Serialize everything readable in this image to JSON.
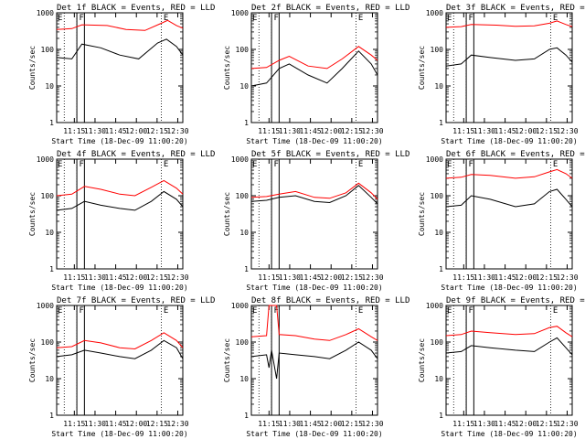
{
  "chart_data": {
    "type": "line",
    "layout": "3x3",
    "yscale": "log",
    "ylim": [
      1,
      1000
    ],
    "yticks": [
      "1",
      "10",
      "100",
      "1000"
    ],
    "xticks": [
      "11:15",
      "11:30",
      "11:45",
      "12:00",
      "12:15",
      "12:30"
    ],
    "ylabel": "Counts/sec",
    "xlabel": "Start Time (18-Dec-09 11:00:20)",
    "colors": {
      "events": "#000000",
      "lld": "#ff0000"
    },
    "panels": [
      {
        "title": "Det 1f BLACK = Events, RED = LLD",
        "marks": [
          "E",
          "F",
          "E"
        ],
        "events": [
          [
            0,
            60
          ],
          [
            0.12,
            55
          ],
          [
            0.2,
            140
          ],
          [
            0.35,
            110
          ],
          [
            0.5,
            70
          ],
          [
            0.65,
            55
          ],
          [
            0.8,
            150
          ],
          [
            0.87,
            190
          ],
          [
            0.95,
            120
          ],
          [
            1.0,
            70
          ]
        ],
        "lld": [
          [
            0,
            350
          ],
          [
            0.12,
            370
          ],
          [
            0.2,
            470
          ],
          [
            0.4,
            450
          ],
          [
            0.55,
            350
          ],
          [
            0.7,
            330
          ],
          [
            0.82,
            500
          ],
          [
            0.88,
            620
          ],
          [
            0.95,
            450
          ],
          [
            1.0,
            380
          ]
        ]
      },
      {
        "title": "Det 2f BLACK = Events, RED = LLD",
        "marks": [
          "E",
          "F",
          "E"
        ],
        "events": [
          [
            0,
            10
          ],
          [
            0.12,
            12
          ],
          [
            0.22,
            30
          ],
          [
            0.3,
            40
          ],
          [
            0.45,
            20
          ],
          [
            0.6,
            12
          ],
          [
            0.72,
            30
          ],
          [
            0.85,
            90
          ],
          [
            0.95,
            40
          ],
          [
            1.0,
            20
          ]
        ],
        "lld": [
          [
            0,
            30
          ],
          [
            0.12,
            32
          ],
          [
            0.22,
            50
          ],
          [
            0.3,
            65
          ],
          [
            0.45,
            35
          ],
          [
            0.6,
            30
          ],
          [
            0.72,
            55
          ],
          [
            0.85,
            120
          ],
          [
            0.95,
            70
          ],
          [
            1.0,
            50
          ]
        ]
      },
      {
        "title": "Det 3f BLACK = Events, RED = LLD",
        "marks": [
          "E",
          "F",
          "E"
        ],
        "events": [
          [
            0,
            35
          ],
          [
            0.12,
            40
          ],
          [
            0.2,
            70
          ],
          [
            0.35,
            60
          ],
          [
            0.55,
            50
          ],
          [
            0.7,
            55
          ],
          [
            0.82,
            100
          ],
          [
            0.88,
            110
          ],
          [
            0.95,
            70
          ],
          [
            1.0,
            45
          ]
        ],
        "lld": [
          [
            0,
            400
          ],
          [
            0.12,
            420
          ],
          [
            0.2,
            480
          ],
          [
            0.4,
            460
          ],
          [
            0.55,
            430
          ],
          [
            0.7,
            440
          ],
          [
            0.82,
            520
          ],
          [
            0.88,
            600
          ],
          [
            0.95,
            480
          ],
          [
            1.0,
            420
          ]
        ]
      },
      {
        "title": "Det 4f BLACK = Events, RED = LLD",
        "marks": [
          "E",
          "F",
          "E"
        ],
        "events": [
          [
            0,
            40
          ],
          [
            0.12,
            45
          ],
          [
            0.22,
            70
          ],
          [
            0.35,
            55
          ],
          [
            0.5,
            45
          ],
          [
            0.62,
            40
          ],
          [
            0.75,
            70
          ],
          [
            0.85,
            130
          ],
          [
            0.95,
            80
          ],
          [
            1.0,
            50
          ]
        ],
        "lld": [
          [
            0,
            100
          ],
          [
            0.12,
            110
          ],
          [
            0.22,
            180
          ],
          [
            0.35,
            150
          ],
          [
            0.5,
            110
          ],
          [
            0.62,
            100
          ],
          [
            0.75,
            170
          ],
          [
            0.85,
            260
          ],
          [
            0.95,
            160
          ],
          [
            1.0,
            110
          ]
        ]
      },
      {
        "title": "Det 5f BLACK = Events, RED = LLD",
        "marks": [
          "E",
          "F",
          "E"
        ],
        "events": [
          [
            0,
            70
          ],
          [
            0.12,
            75
          ],
          [
            0.22,
            90
          ],
          [
            0.35,
            100
          ],
          [
            0.5,
            70
          ],
          [
            0.62,
            65
          ],
          [
            0.75,
            100
          ],
          [
            0.85,
            190
          ],
          [
            0.95,
            90
          ],
          [
            1.0,
            60
          ]
        ],
        "lld": [
          [
            0,
            90
          ],
          [
            0.12,
            95
          ],
          [
            0.22,
            110
          ],
          [
            0.35,
            130
          ],
          [
            0.5,
            90
          ],
          [
            0.62,
            85
          ],
          [
            0.75,
            120
          ],
          [
            0.85,
            220
          ],
          [
            0.95,
            120
          ],
          [
            1.0,
            80
          ]
        ]
      },
      {
        "title": "Det 6f BLACK = Events, RED = LLD",
        "marks": [
          "E",
          "F",
          "E"
        ],
        "events": [
          [
            0,
            50
          ],
          [
            0.12,
            55
          ],
          [
            0.2,
            100
          ],
          [
            0.35,
            80
          ],
          [
            0.55,
            50
          ],
          [
            0.7,
            60
          ],
          [
            0.82,
            130
          ],
          [
            0.88,
            150
          ],
          [
            0.95,
            80
          ],
          [
            1.0,
            50
          ]
        ],
        "lld": [
          [
            0,
            300
          ],
          [
            0.12,
            320
          ],
          [
            0.2,
            380
          ],
          [
            0.35,
            360
          ],
          [
            0.55,
            300
          ],
          [
            0.7,
            330
          ],
          [
            0.82,
            450
          ],
          [
            0.88,
            520
          ],
          [
            0.95,
            400
          ],
          [
            1.0,
            300
          ]
        ]
      },
      {
        "title": "Det 7f BLACK = Events, RED = LLD",
        "marks": [
          "E",
          "F",
          "E"
        ],
        "events": [
          [
            0,
            40
          ],
          [
            0.12,
            45
          ],
          [
            0.22,
            60
          ],
          [
            0.35,
            50
          ],
          [
            0.5,
            40
          ],
          [
            0.62,
            35
          ],
          [
            0.75,
            60
          ],
          [
            0.85,
            110
          ],
          [
            0.95,
            70
          ],
          [
            1.0,
            35
          ]
        ],
        "lld": [
          [
            0,
            70
          ],
          [
            0.12,
            75
          ],
          [
            0.22,
            110
          ],
          [
            0.35,
            95
          ],
          [
            0.5,
            70
          ],
          [
            0.62,
            65
          ],
          [
            0.75,
            110
          ],
          [
            0.85,
            180
          ],
          [
            0.95,
            110
          ],
          [
            1.0,
            70
          ]
        ]
      },
      {
        "title": "Det 8f BLACK = Events, RED = LLD",
        "marks": [
          "E",
          "F",
          "E"
        ],
        "events": [
          [
            0,
            40
          ],
          [
            0.12,
            45
          ],
          [
            0.14,
            20
          ],
          [
            0.16,
            60
          ],
          [
            0.2,
            10
          ],
          [
            0.22,
            50
          ],
          [
            0.35,
            45
          ],
          [
            0.5,
            40
          ],
          [
            0.62,
            35
          ],
          [
            0.75,
            60
          ],
          [
            0.85,
            100
          ],
          [
            0.95,
            60
          ],
          [
            1.0,
            35
          ]
        ],
        "lld": [
          [
            0,
            140
          ],
          [
            0.12,
            150
          ],
          [
            0.14,
            1000
          ],
          [
            0.2,
            1000
          ],
          [
            0.22,
            160
          ],
          [
            0.35,
            150
          ],
          [
            0.5,
            120
          ],
          [
            0.62,
            110
          ],
          [
            0.75,
            160
          ],
          [
            0.85,
            230
          ],
          [
            0.95,
            140
          ],
          [
            1.0,
            110
          ]
        ]
      },
      {
        "title": "Det 9f BLACK = Events, RED = LLD",
        "marks": [
          "E",
          "F",
          "E"
        ],
        "events": [
          [
            0,
            50
          ],
          [
            0.12,
            55
          ],
          [
            0.2,
            80
          ],
          [
            0.35,
            70
          ],
          [
            0.55,
            60
          ],
          [
            0.7,
            55
          ],
          [
            0.82,
            100
          ],
          [
            0.88,
            130
          ],
          [
            0.95,
            70
          ],
          [
            1.0,
            45
          ]
        ],
        "lld": [
          [
            0,
            150
          ],
          [
            0.12,
            160
          ],
          [
            0.2,
            200
          ],
          [
            0.35,
            180
          ],
          [
            0.55,
            160
          ],
          [
            0.7,
            170
          ],
          [
            0.82,
            250
          ],
          [
            0.88,
            270
          ],
          [
            0.95,
            180
          ],
          [
            1.0,
            140
          ]
        ]
      }
    ]
  }
}
